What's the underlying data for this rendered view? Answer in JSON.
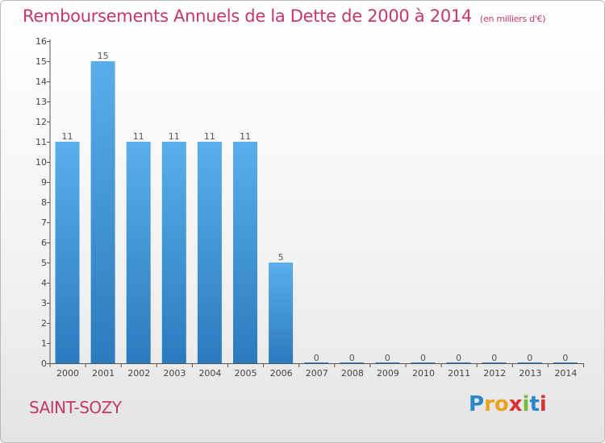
{
  "header": {
    "title": "Remboursements Annuels de la Dette de 2000 à 2014",
    "unit": "(en milliers d'€)"
  },
  "footer": {
    "city": "SAINT-SOZY",
    "logo": "Proxiti"
  },
  "chart_data": {
    "type": "bar",
    "title": "Remboursements Annuels de la Dette de 2000 à 2014",
    "subtitle": "(en milliers d'€)",
    "xlabel": "",
    "ylabel": "",
    "categories": [
      "2000",
      "2001",
      "2002",
      "2003",
      "2004",
      "2005",
      "2006",
      "2007",
      "2008",
      "2009",
      "2010",
      "2011",
      "2012",
      "2013",
      "2014"
    ],
    "values": [
      11,
      15,
      11,
      11,
      11,
      11,
      5,
      0,
      0,
      0,
      0,
      0,
      0,
      0,
      0
    ],
    "data_labels": [
      "11",
      "15",
      "11",
      "11",
      "11",
      "11",
      "5",
      "0",
      "0",
      "0",
      "0",
      "0",
      "0",
      "0",
      "0"
    ],
    "ylim": [
      0,
      16
    ],
    "yticks": [
      "0",
      "1",
      "2",
      "3",
      "4",
      "5",
      "6",
      "7",
      "8",
      "9",
      "10",
      "11",
      "12",
      "13",
      "14",
      "15",
      "16"
    ],
    "grid": false,
    "legend": "none",
    "colors": {
      "bar_light": "#5aaeea",
      "bar_dark": "#2a7bbd",
      "title": "#c4376b"
    }
  }
}
